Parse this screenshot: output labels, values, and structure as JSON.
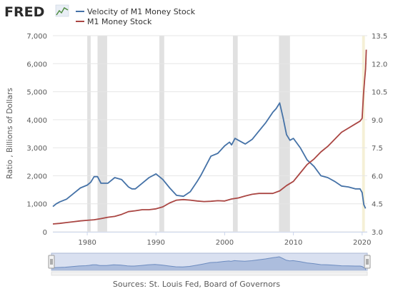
{
  "brand": {
    "logo_text": "FRED"
  },
  "source_text": "Sources: St. Louis Fed, Board of Governors",
  "chart_data": {
    "type": "line",
    "xlabel": "",
    "ylabel_left": "Ratio , Billions of Dollars",
    "ylabel_right": "",
    "xlim": [
      1975.0,
      2020.75
    ],
    "ylim_left": [
      0,
      7000
    ],
    "ylim_right": [
      3.0,
      13.5
    ],
    "x_ticks": [
      1980,
      1990,
      2000,
      2010,
      2020
    ],
    "x_tick_labels": [
      "1980",
      "1990",
      "2000",
      "2010",
      "2020"
    ],
    "y_left_ticks": [
      0,
      1000,
      2000,
      3000,
      4000,
      5000,
      6000,
      7000
    ],
    "y_left_tick_labels": [
      "0",
      "1,000",
      "2,000",
      "3,000",
      "4,000",
      "5,000",
      "6,000",
      "7,000"
    ],
    "y_right_ticks": [
      3.0,
      4.5,
      6.0,
      7.5,
      9.0,
      10.5,
      12.0,
      13.5
    ],
    "y_right_tick_labels": [
      "3.0",
      "4.5",
      "6.0",
      "7.5",
      "9.0",
      "10.5",
      "12.0",
      "13.5"
    ],
    "grid": true,
    "legend_placement": "top-left",
    "recessions": [
      [
        1980.0,
        1980.5
      ],
      [
        1981.5,
        1982.9
      ],
      [
        1990.5,
        1991.2
      ],
      [
        2001.2,
        2001.9
      ],
      [
        2007.9,
        2009.5
      ],
      [
        2020.0,
        2020.4
      ]
    ],
    "series": [
      {
        "name": "Velocity of M1 Money Stock",
        "axis": "right",
        "color": "#4572a7",
        "x": [
          1975.0,
          1975.5,
          1976.0,
          1977.0,
          1978.0,
          1979.0,
          1980.0,
          1980.5,
          1981.0,
          1981.5,
          1982.0,
          1982.5,
          1983.0,
          1984.0,
          1985.0,
          1986.0,
          1986.5,
          1987.0,
          1988.0,
          1989.0,
          1990.0,
          1991.0,
          1992.0,
          1993.0,
          1994.0,
          1995.0,
          1996.0,
          1996.5,
          1997.0,
          1998.0,
          1999.0,
          2000.0,
          2000.7,
          2001.0,
          2001.5,
          2002.0,
          2003.0,
          2004.0,
          2005.0,
          2006.0,
          2007.0,
          2007.5,
          2008.0,
          2008.5,
          2009.0,
          2009.5,
          2010.0,
          2011.0,
          2012.0,
          2013.0,
          2014.0,
          2015.0,
          2016.0,
          2017.0,
          2018.0,
          2019.0,
          2019.7,
          2020.0,
          2020.25,
          2020.5
        ],
        "y": [
          4.35,
          4.5,
          4.6,
          4.75,
          5.05,
          5.35,
          5.5,
          5.65,
          5.95,
          5.95,
          5.6,
          5.6,
          5.6,
          5.9,
          5.8,
          5.4,
          5.3,
          5.3,
          5.6,
          5.9,
          6.1,
          5.8,
          5.35,
          4.95,
          4.9,
          5.15,
          5.7,
          6.0,
          6.35,
          7.05,
          7.2,
          7.6,
          7.8,
          7.65,
          8.0,
          7.9,
          7.7,
          7.95,
          8.4,
          8.85,
          9.4,
          9.6,
          9.9,
          9.1,
          8.2,
          7.9,
          8.0,
          7.5,
          6.85,
          6.5,
          6.0,
          5.9,
          5.7,
          5.45,
          5.4,
          5.3,
          5.3,
          5.1,
          4.45,
          4.25
        ]
      },
      {
        "name": "M1 Money Stock",
        "axis": "left",
        "color": "#aa4643",
        "x": [
          1975.0,
          1976.0,
          1977.0,
          1978.0,
          1979.0,
          1980.0,
          1981.0,
          1982.0,
          1983.0,
          1984.0,
          1985.0,
          1986.0,
          1987.0,
          1988.0,
          1989.0,
          1990.0,
          1991.0,
          1992.0,
          1993.0,
          1994.0,
          1995.0,
          1996.0,
          1997.0,
          1998.0,
          1999.0,
          2000.0,
          2001.0,
          2002.0,
          2003.0,
          2004.0,
          2005.0,
          2006.0,
          2007.0,
          2008.0,
          2009.0,
          2010.0,
          2011.0,
          2012.0,
          2013.0,
          2014.0,
          2015.0,
          2016.0,
          2017.0,
          2018.0,
          2019.0,
          2019.7,
          2020.0,
          2020.2,
          2020.35,
          2020.5,
          2020.6
        ],
        "y": [
          280,
          300,
          330,
          360,
          390,
          410,
          430,
          470,
          520,
          550,
          620,
          720,
          750,
          790,
          790,
          820,
          890,
          1030,
          1130,
          1150,
          1130,
          1100,
          1080,
          1090,
          1110,
          1100,
          1170,
          1210,
          1280,
          1340,
          1370,
          1370,
          1370,
          1460,
          1650,
          1800,
          2100,
          2400,
          2600,
          2850,
          3050,
          3300,
          3550,
          3700,
          3850,
          3950,
          4050,
          4900,
          5400,
          5800,
          6500
        ]
      }
    ]
  },
  "navigator": {
    "mini_series": "Velocity of M1 Money Stock",
    "range_start": 1975.0,
    "range_end": 2020.75
  }
}
